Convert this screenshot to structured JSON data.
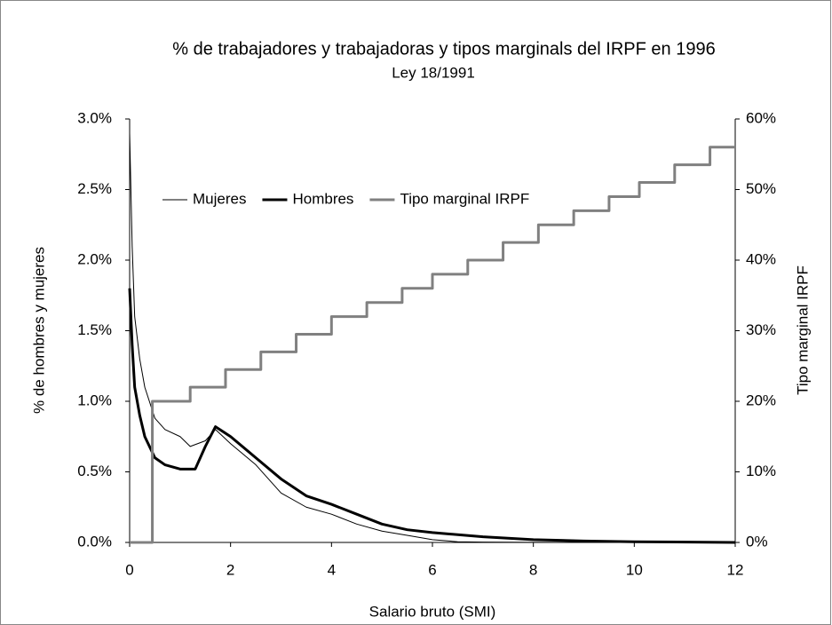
{
  "chart_data": {
    "type": "line",
    "title": "% de trabajadores y trabajadoras y tipos marginals del IRPF en 1996",
    "subtitle": "Ley 18/1991",
    "x_label": "Salario bruto (SMI)",
    "y_label": "% de hombres y mujeres",
    "y2_label": "Tipo marginal IRPF",
    "xlim": [
      0,
      12
    ],
    "xticks": [
      0,
      2,
      4,
      6,
      8,
      10,
      12
    ],
    "ylim": [
      0,
      3
    ],
    "yticks": [
      {
        "value": 0,
        "label": "0.0%"
      },
      {
        "value": 0.5,
        "label": "0.5%"
      },
      {
        "value": 1,
        "label": "1.0%"
      },
      {
        "value": 1.5,
        "label": "1.5%"
      },
      {
        "value": 2,
        "label": "2.0%"
      },
      {
        "value": 2.5,
        "label": "2.5%"
      },
      {
        "value": 3,
        "label": "3.0%"
      }
    ],
    "y2lim": [
      0,
      60
    ],
    "y2ticks": [
      {
        "value": 0,
        "label": "0%"
      },
      {
        "value": 10,
        "label": "10%"
      },
      {
        "value": 20,
        "label": "20%"
      },
      {
        "value": 30,
        "label": "30%"
      },
      {
        "value": 40,
        "label": "40%"
      },
      {
        "value": 50,
        "label": "50%"
      },
      {
        "value": 60,
        "label": "60%"
      }
    ],
    "legend": "upper-left",
    "series": [
      {
        "name": "Mujeres",
        "color": "#000000",
        "width": 1,
        "x": [
          0,
          0.05,
          0.1,
          0.2,
          0.3,
          0.5,
          0.7,
          1.0,
          1.2,
          1.5,
          1.7,
          2.0,
          2.5,
          3.0,
          3.5,
          4.0,
          4.5,
          5.0,
          5.5,
          6.0,
          6.5,
          7.0,
          8.0,
          10.0,
          12.0
        ],
        "values": [
          2.9,
          2.1,
          1.6,
          1.3,
          1.1,
          0.88,
          0.8,
          0.75,
          0.68,
          0.72,
          0.8,
          0.7,
          0.55,
          0.35,
          0.25,
          0.2,
          0.13,
          0.08,
          0.05,
          0.02,
          0.005,
          0.002,
          0.001,
          0,
          0
        ]
      },
      {
        "name": "Hombres",
        "color": "#000000",
        "width": 3,
        "x": [
          0,
          0.05,
          0.1,
          0.2,
          0.3,
          0.5,
          0.7,
          1.0,
          1.3,
          1.5,
          1.7,
          2.0,
          2.5,
          3.0,
          3.5,
          4.0,
          4.5,
          5.0,
          5.5,
          6.0,
          7.0,
          8.0,
          9.0,
          10.0,
          12.0
        ],
        "values": [
          1.8,
          1.4,
          1.1,
          0.9,
          0.75,
          0.6,
          0.55,
          0.52,
          0.52,
          0.68,
          0.82,
          0.75,
          0.6,
          0.45,
          0.33,
          0.27,
          0.2,
          0.13,
          0.09,
          0.07,
          0.04,
          0.02,
          0.01,
          0.005,
          0
        ]
      },
      {
        "name": "Tipo marginal IRPF",
        "color": "#808080",
        "width": 3,
        "axis": "y2",
        "x": [
          0,
          0.45,
          0.45,
          1.2,
          1.2,
          1.9,
          1.9,
          2.6,
          2.6,
          3.3,
          3.3,
          4.0,
          4.0,
          4.7,
          4.7,
          5.4,
          5.4,
          6.0,
          6.0,
          6.7,
          6.7,
          7.4,
          7.4,
          8.1,
          8.1,
          8.8,
          8.8,
          9.5,
          9.5,
          10.1,
          10.1,
          10.8,
          10.8,
          11.5,
          11.5,
          12
        ],
        "values": [
          0,
          0,
          20,
          20,
          22,
          22,
          24.5,
          24.5,
          27,
          27,
          29.5,
          29.5,
          32,
          32,
          34,
          34,
          36,
          36,
          38,
          38,
          40,
          40,
          42.5,
          42.5,
          45,
          45,
          47,
          47,
          49,
          49,
          51,
          51,
          53.5,
          53.5,
          56,
          56
        ]
      }
    ]
  }
}
